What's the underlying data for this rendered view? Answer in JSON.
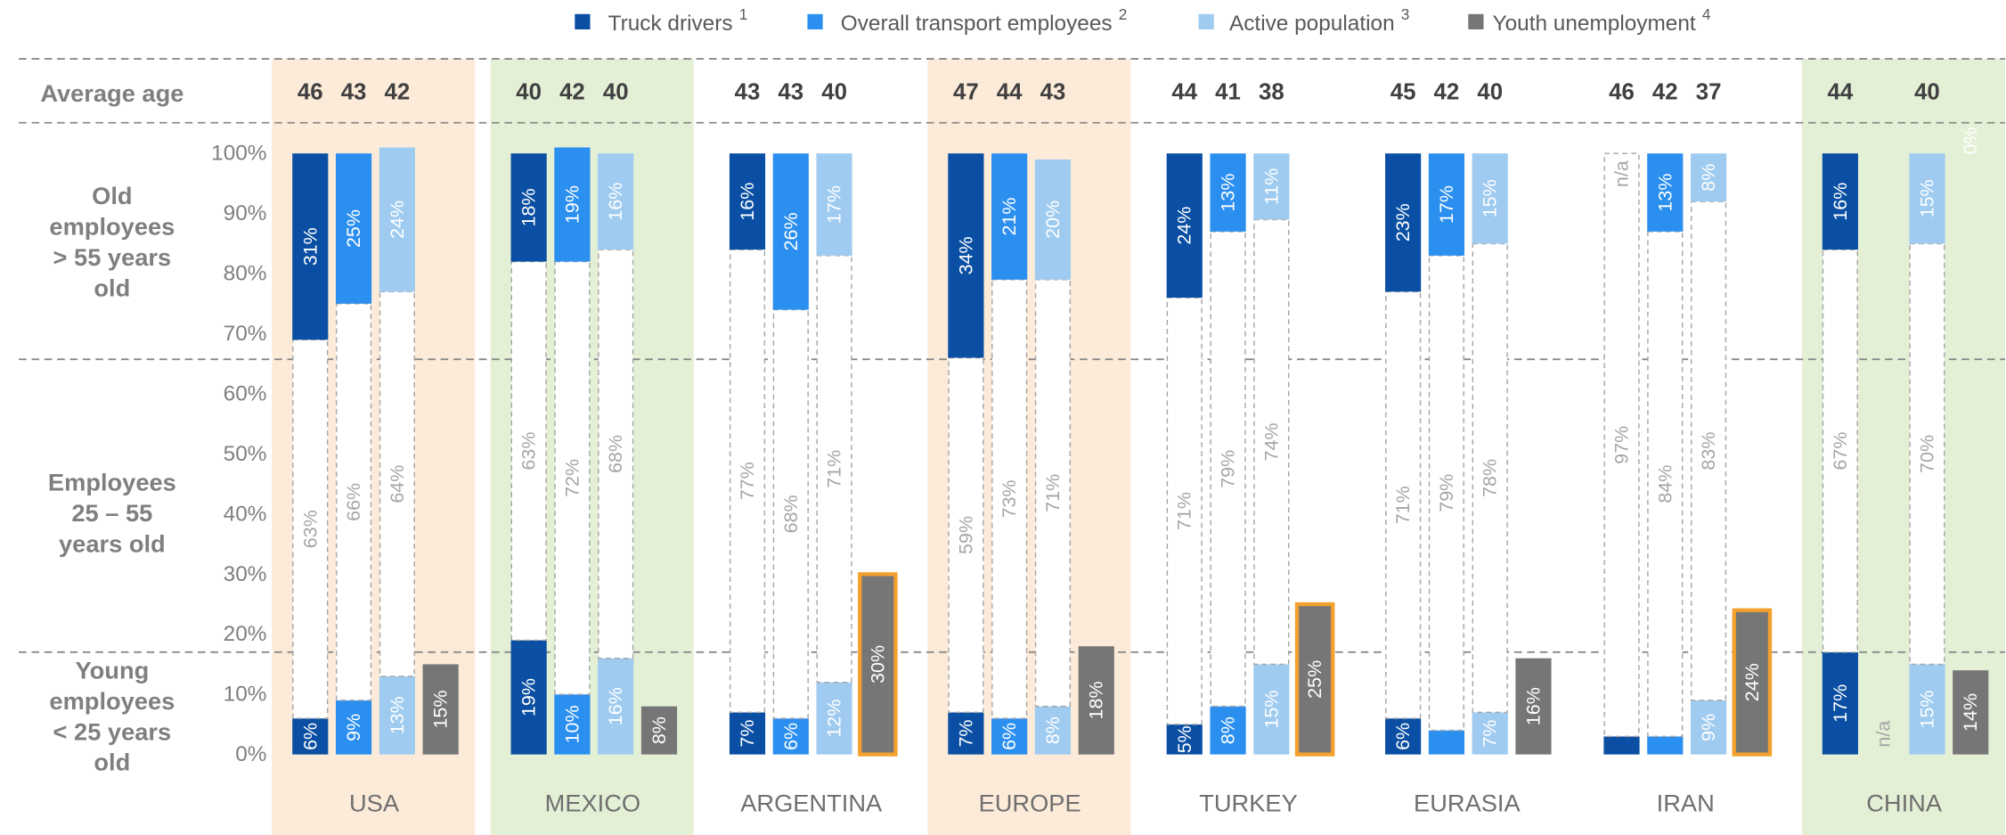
{
  "chart_data": {
    "type": "stacked_bar",
    "row_labels": {
      "average_age": "Average age",
      "old": [
        "Old",
        "employees",
        "> 55 years",
        "old"
      ],
      "middle": [
        "Employees",
        "25 – 55",
        "years old"
      ],
      "young": [
        "Young",
        "employees",
        "< 25 years",
        "old"
      ]
    },
    "categories": [
      "USA",
      "MEXICO",
      "ARGENTINA",
      "EUROPE",
      "TURKEY",
      "EURASIA",
      "IRAN",
      "CHINA"
    ],
    "band_colors": [
      "#fdebd9",
      "#e3f0d6",
      null,
      "#fdebd9",
      null,
      null,
      null,
      "#e3f0d6"
    ],
    "ylim": [
      0,
      100
    ],
    "yticks": [
      {
        "value": 0,
        "label": "0%"
      },
      {
        "value": 10,
        "label": "10%"
      },
      {
        "value": 20,
        "label": "20%"
      },
      {
        "value": 30,
        "label": "30%"
      },
      {
        "value": 40,
        "label": "40%"
      },
      {
        "value": 50,
        "label": "50%"
      },
      {
        "value": 60,
        "label": "60%"
      },
      {
        "value": 70,
        "label": "70%"
      },
      {
        "value": 80,
        "label": "80%"
      },
      {
        "value": 90,
        "label": "90%"
      },
      {
        "value": 100,
        "label": "100%"
      }
    ],
    "series": [
      {
        "name": "Truck drivers",
        "note": "1",
        "color": "#0a4fa3",
        "avg_age": [
          46,
          40,
          43,
          47,
          44,
          45,
          46,
          44
        ],
        "young": [
          6,
          19,
          7,
          7,
          5,
          6,
          3,
          17
        ],
        "young_labels": [
          "6%",
          "19%",
          "7%",
          "7%",
          "5%",
          "6%",
          "3%",
          "17%"
        ],
        "middle": [
          63,
          63,
          77,
          59,
          71,
          71,
          97,
          67
        ],
        "middle_labels": [
          "63%",
          "63%",
          "77%",
          "59%",
          "71%",
          "71%",
          "97%",
          "67%"
        ],
        "old": [
          31,
          18,
          16,
          34,
          24,
          23,
          null,
          16
        ],
        "old_labels": [
          "31%",
          "18%",
          "16%",
          "34%",
          "24%",
          "23%",
          "n/a",
          "16%"
        ]
      },
      {
        "name": "Overall transport employees",
        "note": "2",
        "color": "#2b8ff0",
        "avg_age": [
          43,
          42,
          43,
          44,
          41,
          42,
          42,
          null
        ],
        "young": [
          9,
          10,
          6,
          6,
          8,
          4,
          3,
          null
        ],
        "young_labels": [
          "9%",
          "10%",
          "6%",
          "6%",
          "8%",
          "4%",
          "3%",
          "n/a"
        ],
        "middle": [
          66,
          72,
          68,
          73,
          79,
          79,
          84,
          null
        ],
        "middle_labels": [
          "66%",
          "72%",
          "68%",
          "73%",
          "79%",
          "79%",
          "84%",
          null
        ],
        "old": [
          25,
          19,
          26,
          21,
          13,
          17,
          13,
          null
        ],
        "old_labels": [
          "25%",
          "19%",
          "26%",
          "21%",
          "13%",
          "17%",
          "13%",
          null
        ]
      },
      {
        "name": "Active population",
        "note": "3",
        "color": "#9fcbf0",
        "avg_age": [
          42,
          40,
          40,
          43,
          38,
          40,
          37,
          40
        ],
        "young": [
          13,
          16,
          12,
          8,
          15,
          7,
          9,
          15
        ],
        "young_labels": [
          "13%",
          "16%",
          "12%",
          "8%",
          "15%",
          "7%",
          "9%",
          "15%"
        ],
        "middle": [
          64,
          68,
          71,
          71,
          74,
          78,
          83,
          70
        ],
        "middle_labels": [
          "64%",
          "68%",
          "71%",
          "71%",
          "74%",
          "78%",
          "83%",
          "70%"
        ],
        "old": [
          24,
          16,
          17,
          20,
          11,
          15,
          8,
          15
        ],
        "old_labels": [
          "24%",
          "16%",
          "17%",
          "20%",
          "11%",
          "15%",
          "8%",
          "15%"
        ]
      },
      {
        "name": "Youth unemployment",
        "note": "4",
        "color": "#767676",
        "values": [
          15,
          8,
          30,
          18,
          25,
          16,
          24,
          14
        ],
        "value_labels": [
          "15%",
          "8%",
          "30%",
          "18%",
          "25%",
          "16%",
          "24%",
          "14%"
        ],
        "highlight": [
          false,
          false,
          true,
          false,
          true,
          false,
          true,
          false
        ]
      }
    ],
    "highlight_color": "#f4a02c",
    "annotations": [
      "0%"
    ]
  }
}
